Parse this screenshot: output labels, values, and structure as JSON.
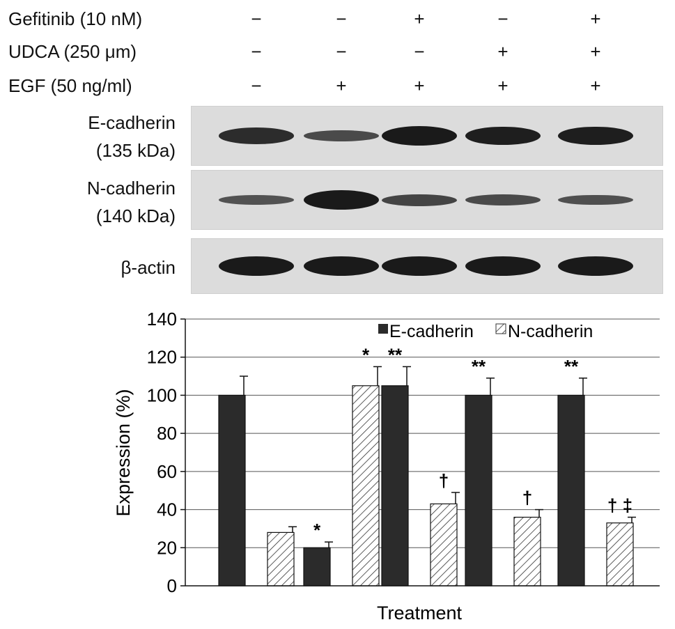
{
  "treatments": {
    "rows": [
      {
        "label": "Gefitinib (10 nM)",
        "signs": [
          "−",
          "−",
          "+",
          "−",
          "+"
        ]
      },
      {
        "label": "UDCA (250 μm)",
        "signs": [
          "−",
          "−",
          "−",
          "+",
          "+"
        ]
      },
      {
        "label": "EGF (50 ng/ml)",
        "signs": [
          "−",
          "+",
          "+",
          "+",
          "+"
        ]
      }
    ]
  },
  "blots": [
    {
      "name": "E-cadherin",
      "label_line1": "E-cadherin",
      "label_line2": "(135 kDa)",
      "band_intensity": [
        0.8,
        0.45,
        1.0,
        0.95,
        0.95
      ]
    },
    {
      "name": "N-cadherin",
      "label_line1": "N-cadherin",
      "label_line2": "(140 kDa)",
      "band_intensity": [
        0.35,
        1.0,
        0.5,
        0.45,
        0.4
      ]
    },
    {
      "name": "beta-actin",
      "label_line1": "β-actin",
      "label_line2": "",
      "band_intensity": [
        1.0,
        1.0,
        1.0,
        1.0,
        1.0
      ]
    }
  ],
  "colors": {
    "e_cadherin": "#2b2b2b",
    "n_cadherin_fill": "#ffffff",
    "n_cadherin_hatch": "#333333"
  },
  "chart_data": {
    "type": "bar",
    "xlabel": "Treatment",
    "ylabel": "Expression (%)",
    "ylim": [
      0,
      140
    ],
    "yticks": [
      0,
      20,
      40,
      60,
      80,
      100,
      120,
      140
    ],
    "grid": true,
    "legend_position": "top-right",
    "groups": 5,
    "series": [
      {
        "name": "E-cadherin",
        "values": [
          100,
          20,
          105,
          100,
          100
        ],
        "errors": [
          10,
          3,
          10,
          9,
          9
        ],
        "annotations": [
          "",
          "*",
          "**",
          "**",
          "**"
        ]
      },
      {
        "name": "N-cadherin",
        "values": [
          28,
          105,
          43,
          36,
          33
        ],
        "errors": [
          3,
          10,
          6,
          4,
          3
        ],
        "annotations": [
          "",
          "*",
          "†",
          "†",
          "† ‡"
        ]
      }
    ]
  }
}
